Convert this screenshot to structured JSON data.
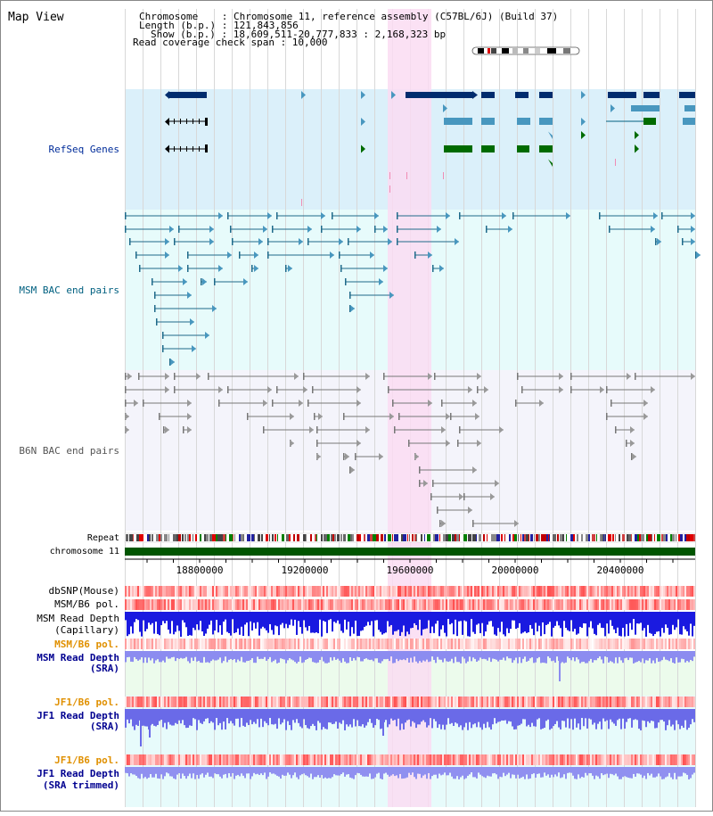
{
  "view_title": "Map View",
  "info": {
    "line1": "Chromosome    : Chromosome 11, reference assembly (C57BL/6J) (Build 37)",
    "line2": "Length (b.p.) : 121,843,856",
    "line3": "Show (b.p.) : 18,609,511-20,777,833 : 2,168,323 bp",
    "line4": "Read coverage check span : 10,000"
  },
  "tracks": {
    "refseq": "RefSeq Genes",
    "msm_bac": "MSM BAC end pairs",
    "b6n_bac": "B6N BAC end pairs",
    "repeat": "Repeat",
    "chromosome": "chromosome 11",
    "dbsnp": "dbSNP(Mouse)",
    "msm_pol": "MSM/B6 pol.",
    "msm_depth_cap_1": "MSM Read Depth",
    "msm_depth_cap_2": "(Capillary)",
    "msm_pol2": "MSM/B6 pol.",
    "msm_depth_sra_1": "MSM Read Depth",
    "msm_depth_sra_2": "(SRA)",
    "jf1_pol": "JF1/B6 pol.",
    "jf1_depth_1": "JF1 Read Depth",
    "jf1_depth_2": "(SRA)",
    "jf1_pol2": "JF1/B6 pol.",
    "jf1_trim_1": "JF1 Read Depth",
    "jf1_trim_2": "(SRA trimmed)"
  },
  "axis_ticks": [
    "18800000",
    "19200000",
    "19600000",
    "20000000",
    "20400000"
  ],
  "colors": {
    "refseq_bg": "#dbf0fa",
    "msm_bg": "#e7fbfb",
    "b6n_bg": "#f4f4fb",
    "highlight": "#fadcf2",
    "gene_dark": "#002c6e",
    "gene_mid": "#4897bf",
    "gene_green": "#006b00",
    "chrom_green": "#005500",
    "msm_label": "#006080",
    "refseq_label": "#002c9a",
    "pol_label": "#e09000",
    "depth_label": "#000090"
  }
}
